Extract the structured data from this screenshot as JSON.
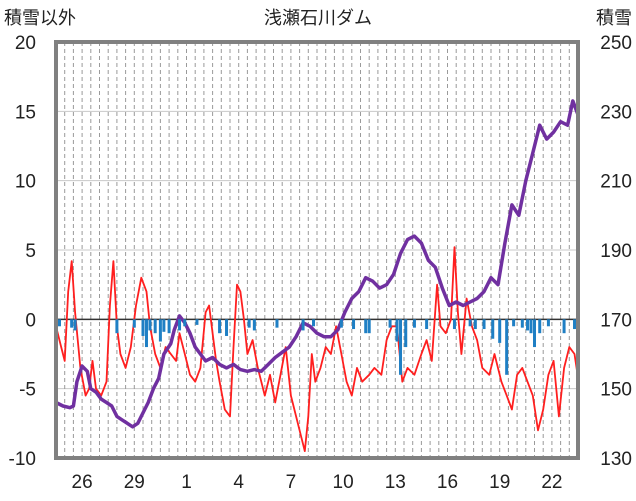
{
  "chart_data": {
    "type": "line",
    "title": "浅瀬石川ダム",
    "ylabel_left": "積雪以外",
    "ylabel_right": "積雪",
    "y_left": {
      "min": -10,
      "max": 20,
      "ticks": [
        20,
        15,
        10,
        5,
        0,
        -5,
        -10
      ]
    },
    "y_right": {
      "min": 130,
      "max": 250,
      "ticks": [
        250,
        230,
        210,
        190,
        170,
        150,
        130
      ]
    },
    "x": {
      "min": 0,
      "max": 30,
      "vlines_every": 0.5,
      "ticks": [
        {
          "pos": 1.5,
          "label": "26"
        },
        {
          "pos": 4.5,
          "label": "29"
        },
        {
          "pos": 7.5,
          "label": "1"
        },
        {
          "pos": 10.5,
          "label": "4"
        },
        {
          "pos": 13.5,
          "label": "7"
        },
        {
          "pos": 16.5,
          "label": "10"
        },
        {
          "pos": 19.5,
          "label": "13"
        },
        {
          "pos": 22.5,
          "label": "16"
        },
        {
          "pos": 25.5,
          "label": "19"
        },
        {
          "pos": 28.5,
          "label": "22"
        }
      ]
    },
    "grid": true,
    "series": [
      {
        "axis": "left",
        "kind": "line",
        "color": "#ff1f1f",
        "points": [
          [
            0,
            -0.5
          ],
          [
            0.3,
            -2
          ],
          [
            0.5,
            -3
          ],
          [
            0.7,
            2
          ],
          [
            0.9,
            4.2
          ],
          [
            1.1,
            0.5
          ],
          [
            1.4,
            -3.5
          ],
          [
            1.7,
            -5.5
          ],
          [
            1.9,
            -5
          ],
          [
            2.1,
            -3
          ],
          [
            2.3,
            -5
          ],
          [
            2.6,
            -5.5
          ],
          [
            2.9,
            -4.5
          ],
          [
            3.1,
            1
          ],
          [
            3.3,
            4.2
          ],
          [
            3.5,
            -0.5
          ],
          [
            3.7,
            -2.5
          ],
          [
            4,
            -3.5
          ],
          [
            4.3,
            -2
          ],
          [
            4.6,
            1
          ],
          [
            4.9,
            3
          ],
          [
            5.2,
            2
          ],
          [
            5.4,
            -0.5
          ],
          [
            5.7,
            -2.5
          ],
          [
            6,
            -3.5
          ],
          [
            6.3,
            -2
          ],
          [
            6.6,
            -2.5
          ],
          [
            6.9,
            -3
          ],
          [
            7.1,
            -1
          ],
          [
            7.4,
            -2.5
          ],
          [
            7.7,
            -4
          ],
          [
            8,
            -4.5
          ],
          [
            8.3,
            -3.5
          ],
          [
            8.6,
            0.5
          ],
          [
            8.8,
            1
          ],
          [
            9,
            -1
          ],
          [
            9.2,
            -3
          ],
          [
            9.4,
            -4.5
          ],
          [
            9.7,
            -6.5
          ],
          [
            10,
            -7
          ],
          [
            10.2,
            -2
          ],
          [
            10.4,
            2.5
          ],
          [
            10.6,
            2
          ],
          [
            10.8,
            0
          ],
          [
            11,
            -2.5
          ],
          [
            11.3,
            -1.5
          ],
          [
            11.6,
            -3.5
          ],
          [
            12,
            -5.5
          ],
          [
            12.3,
            -4
          ],
          [
            12.6,
            -6
          ],
          [
            12.9,
            -4
          ],
          [
            13.2,
            -2
          ],
          [
            13.5,
            -5.5
          ],
          [
            13.8,
            -7
          ],
          [
            14.1,
            -8.5
          ],
          [
            14.3,
            -9.5
          ],
          [
            14.5,
            -7
          ],
          [
            14.7,
            -2.5
          ],
          [
            14.9,
            -4.5
          ],
          [
            15.2,
            -3.5
          ],
          [
            15.5,
            -2
          ],
          [
            15.8,
            -2.5
          ],
          [
            16.1,
            -0.5
          ],
          [
            16.4,
            -2.5
          ],
          [
            16.7,
            -4.5
          ],
          [
            17,
            -5.5
          ],
          [
            17.3,
            -3.5
          ],
          [
            17.6,
            -4.5
          ],
          [
            18,
            -4
          ],
          [
            18.3,
            -3.5
          ],
          [
            18.7,
            -4
          ],
          [
            19,
            -1.5
          ],
          [
            19.3,
            -0.5
          ],
          [
            19.6,
            -0.5
          ],
          [
            19.9,
            -4.5
          ],
          [
            20.2,
            -3.5
          ],
          [
            20.6,
            -4
          ],
          [
            21,
            -2.5
          ],
          [
            21.3,
            -1.5
          ],
          [
            21.6,
            -3
          ],
          [
            21.9,
            2.5
          ],
          [
            22.1,
            -0.5
          ],
          [
            22.4,
            -1
          ],
          [
            22.7,
            0
          ],
          [
            22.9,
            5.2
          ],
          [
            23.1,
            0.5
          ],
          [
            23.3,
            -2.5
          ],
          [
            23.6,
            1.5
          ],
          [
            23.9,
            -0.5
          ],
          [
            24.2,
            -1.5
          ],
          [
            24.5,
            -3.5
          ],
          [
            24.9,
            -4
          ],
          [
            25.2,
            -2.5
          ],
          [
            25.6,
            -4.5
          ],
          [
            25.9,
            -5.5
          ],
          [
            26.2,
            -6.5
          ],
          [
            26.5,
            -4
          ],
          [
            26.8,
            -3.5
          ],
          [
            27.1,
            -4.5
          ],
          [
            27.4,
            -5.5
          ],
          [
            27.7,
            -8
          ],
          [
            28,
            -6.5
          ],
          [
            28.3,
            -4
          ],
          [
            28.6,
            -3
          ],
          [
            28.9,
            -7
          ],
          [
            29.2,
            -3.5
          ],
          [
            29.5,
            -2
          ],
          [
            29.8,
            -2.5
          ],
          [
            30,
            -4.2
          ]
        ]
      },
      {
        "axis": "right",
        "kind": "line",
        "color": "#7030a0",
        "points": [
          [
            0,
            146
          ],
          [
            0.4,
            145
          ],
          [
            0.8,
            144.5
          ],
          [
            1,
            145
          ],
          [
            1.2,
            152
          ],
          [
            1.5,
            156.5
          ],
          [
            1.8,
            155
          ],
          [
            2,
            150
          ],
          [
            2.3,
            149
          ],
          [
            2.6,
            147
          ],
          [
            2.9,
            146
          ],
          [
            3.2,
            145
          ],
          [
            3.5,
            142
          ],
          [
            3.8,
            141
          ],
          [
            4.1,
            140
          ],
          [
            4.4,
            139
          ],
          [
            4.7,
            140
          ],
          [
            5,
            143
          ],
          [
            5.3,
            146
          ],
          [
            5.6,
            150
          ],
          [
            5.9,
            153
          ],
          [
            6.2,
            160
          ],
          [
            6.6,
            163
          ],
          [
            6.8,
            167
          ],
          [
            7.1,
            171
          ],
          [
            7.4,
            169
          ],
          [
            7.7,
            166
          ],
          [
            8,
            162
          ],
          [
            8.3,
            160
          ],
          [
            8.6,
            158
          ],
          [
            9,
            159
          ],
          [
            9.4,
            157
          ],
          [
            9.8,
            156
          ],
          [
            10.2,
            157
          ],
          [
            10.6,
            155.5
          ],
          [
            11,
            155
          ],
          [
            11.4,
            155.5
          ],
          [
            11.8,
            155
          ],
          [
            12.2,
            157
          ],
          [
            12.6,
            159
          ],
          [
            13,
            160.5
          ],
          [
            13.4,
            162
          ],
          [
            13.8,
            165
          ],
          [
            14.2,
            169
          ],
          [
            14.6,
            168
          ],
          [
            15,
            166
          ],
          [
            15.4,
            165
          ],
          [
            15.8,
            165
          ],
          [
            16.2,
            167
          ],
          [
            16.6,
            172
          ],
          [
            17,
            176
          ],
          [
            17.4,
            178
          ],
          [
            17.8,
            182
          ],
          [
            18.2,
            181
          ],
          [
            18.6,
            179
          ],
          [
            19,
            180
          ],
          [
            19.4,
            183
          ],
          [
            19.8,
            189
          ],
          [
            20.2,
            193
          ],
          [
            20.6,
            194
          ],
          [
            21,
            192
          ],
          [
            21.4,
            187
          ],
          [
            21.8,
            185
          ],
          [
            22.2,
            179
          ],
          [
            22.6,
            174
          ],
          [
            23,
            175
          ],
          [
            23.4,
            174
          ],
          [
            23.8,
            175
          ],
          [
            24.2,
            176
          ],
          [
            24.6,
            178
          ],
          [
            25,
            182
          ],
          [
            25.4,
            180
          ],
          [
            25.8,
            192
          ],
          [
            26.2,
            203
          ],
          [
            26.6,
            200
          ],
          [
            27,
            210
          ],
          [
            27.4,
            218
          ],
          [
            27.8,
            226
          ],
          [
            28.2,
            222
          ],
          [
            28.6,
            224
          ],
          [
            29,
            227
          ],
          [
            29.4,
            226
          ],
          [
            29.7,
            233
          ],
          [
            30,
            229
          ]
        ]
      },
      {
        "axis": "left",
        "kind": "bar",
        "color": "#1f7fc4",
        "points": [
          [
            0.2,
            -0.5
          ],
          [
            0.9,
            -0.6
          ],
          [
            1.1,
            -0.8
          ],
          [
            3.5,
            -1
          ],
          [
            4.5,
            -0.6
          ],
          [
            5,
            -1.2
          ],
          [
            5.2,
            -2
          ],
          [
            5.4,
            -0.8
          ],
          [
            5.7,
            -1
          ],
          [
            6,
            -1.6
          ],
          [
            6.2,
            -0.9
          ],
          [
            6.5,
            -1
          ],
          [
            7.1,
            -0.8
          ],
          [
            7.4,
            -0.5
          ],
          [
            8.1,
            -0.4
          ],
          [
            9.4,
            -1
          ],
          [
            9.8,
            -1.2
          ],
          [
            11.1,
            -0.6
          ],
          [
            11.4,
            -0.8
          ],
          [
            12.7,
            -0.6
          ],
          [
            14.2,
            -0.8
          ],
          [
            14.8,
            -0.5
          ],
          [
            16.4,
            -0.6
          ],
          [
            17.1,
            -0.7
          ],
          [
            17.8,
            -1
          ],
          [
            18,
            -1
          ],
          [
            19.2,
            -0.6
          ],
          [
            19.6,
            -1.6
          ],
          [
            19.8,
            -4
          ],
          [
            20.1,
            -2
          ],
          [
            20.6,
            -0.6
          ],
          [
            21.3,
            -0.7
          ],
          [
            22.9,
            -0.7
          ],
          [
            23.8,
            -0.5
          ],
          [
            24.1,
            -0.7
          ],
          [
            24.6,
            -0.7
          ],
          [
            25.1,
            -1.4
          ],
          [
            25.5,
            -1.7
          ],
          [
            25.9,
            -4
          ],
          [
            26.3,
            -0.5
          ],
          [
            26.8,
            -0.6
          ],
          [
            27.1,
            -0.8
          ],
          [
            27.3,
            -1
          ],
          [
            27.5,
            -2
          ],
          [
            27.8,
            -1
          ],
          [
            28.3,
            -0.5
          ],
          [
            29.2,
            -1
          ],
          [
            29.8,
            -0.7
          ]
        ]
      }
    ]
  }
}
